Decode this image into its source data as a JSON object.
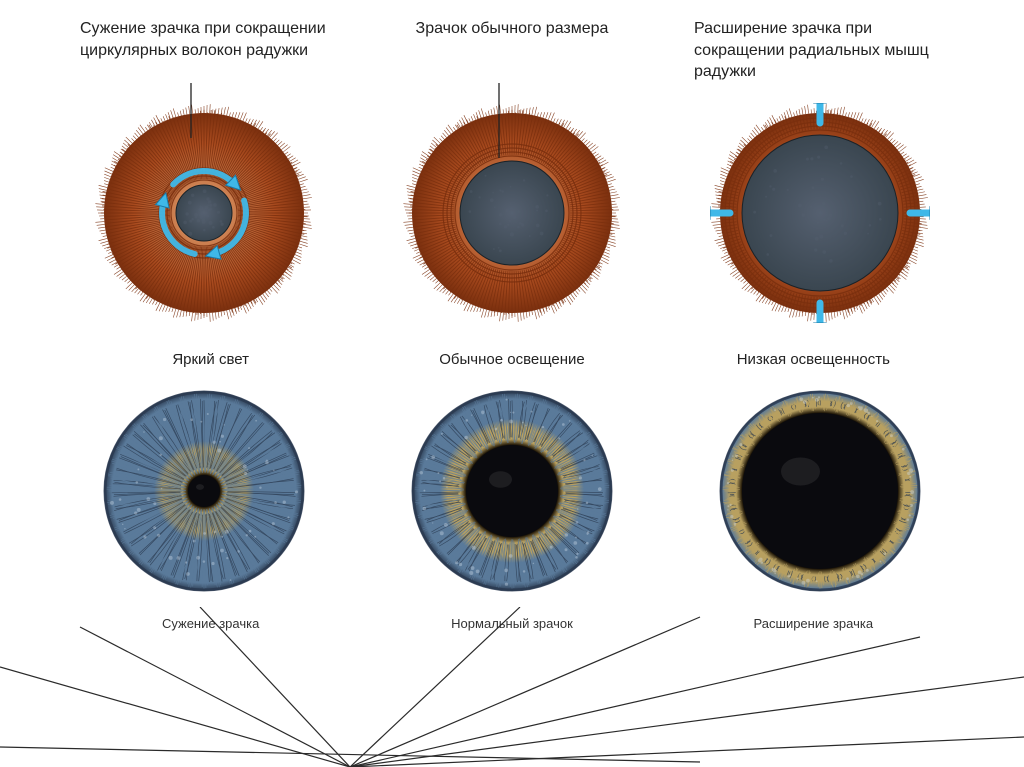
{
  "labels": {
    "top_left": "Сужение зрачка при сокращении циркулярных волокон радужки",
    "top_center": "Зрачок обычного размера",
    "top_right": "Расширение зрачка при сокращении радиальных мышц радужки",
    "mid_left": "Яркий свет",
    "mid_center": "Обычное освещение",
    "mid_right": "Низкая освещенность",
    "bottom_left": "Сужение зрачка",
    "bottom_center": "Нормальный зрачок",
    "bottom_right": "Расширение зрачка"
  },
  "iris_top": {
    "outer_radius": 100,
    "fiber_color_light": "#e8a876",
    "fiber_color_dark": "#a84a1e",
    "stroke_color": "#7a2f0e",
    "pupil_color": "#3a4650",
    "pupil_noise": "#556070",
    "arrow_color": "#3fb8e8",
    "arrow_stroke": "#1a7aa8",
    "states": [
      {
        "pupil_r": 28,
        "circular_arrows": true,
        "radial_arrows": false
      },
      {
        "pupil_r": 52,
        "circular_arrows": false,
        "radial_arrows": false
      },
      {
        "pupil_r": 78,
        "circular_arrows": false,
        "radial_arrows": true
      }
    ]
  },
  "iris_bottom": {
    "outer_radius": 100,
    "fiber_color_outer": "#5a7a9a",
    "fiber_color_inner": "#b8a060",
    "fiber_dark": "#2a3a50",
    "pupil_color": "#0a0a0e",
    "bg": "#ffffff",
    "states": [
      {
        "pupil_r": 16,
        "inner_gold_r": 42
      },
      {
        "pupil_r": 46,
        "inner_gold_r": 64
      },
      {
        "pupil_r": 78,
        "inner_gold_r": 90
      }
    ]
  },
  "style": {
    "text_color": "#222222",
    "small_text_color": "#333333",
    "label_fontsize": 16,
    "mid_fontsize": 15,
    "bottom_fontsize": 13,
    "line_color": "#2a2a2a",
    "line_width": 1.2,
    "background": "#ffffff"
  }
}
